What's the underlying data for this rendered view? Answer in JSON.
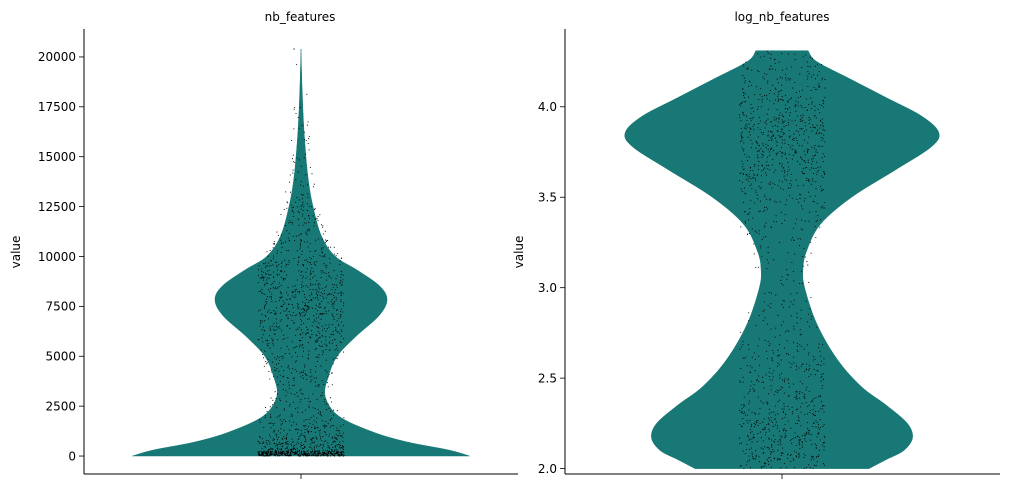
{
  "colors": {
    "violin": "#177876",
    "points": "#000000",
    "axis": "#000000",
    "background": "#ffffff"
  },
  "chart_data": [
    {
      "type": "violin",
      "title": "nb_features",
      "xlabel": "",
      "ylabel": "value",
      "ylim": [
        -900,
        21400
      ],
      "yticks": [
        0,
        2500,
        5000,
        7500,
        10000,
        12500,
        15000,
        17500,
        20000
      ],
      "ytick_labels": [
        "0",
        "2500",
        "5000",
        "7500",
        "10000",
        "12500",
        "15000",
        "17500",
        "20000"
      ],
      "violin_range": [
        0,
        20400
      ],
      "density": [
        [
          0,
          0.98
        ],
        [
          300,
          0.86
        ],
        [
          700,
          0.62
        ],
        [
          1200,
          0.42
        ],
        [
          2000,
          0.22
        ],
        [
          3000,
          0.14
        ],
        [
          4000,
          0.16
        ],
        [
          5000,
          0.21
        ],
        [
          6000,
          0.32
        ],
        [
          7000,
          0.45
        ],
        [
          7800,
          0.5
        ],
        [
          8500,
          0.46
        ],
        [
          9300,
          0.33
        ],
        [
          10000,
          0.2
        ],
        [
          11000,
          0.12
        ],
        [
          12500,
          0.07
        ],
        [
          14000,
          0.04
        ],
        [
          16000,
          0.02
        ],
        [
          18000,
          0.008
        ],
        [
          20400,
          0.0
        ]
      ],
      "points": {
        "count": 1400,
        "jitter_width": 0.31,
        "max": 20400
      }
    },
    {
      "type": "violin",
      "title": "log_nb_features",
      "xlabel": "",
      "ylabel": "value",
      "ylim": [
        1.97,
        4.43
      ],
      "yticks": [
        2.0,
        2.5,
        3.0,
        3.5,
        4.0
      ],
      "ytick_labels": [
        "2.0",
        "2.5",
        "3.0",
        "3.5",
        "4.0"
      ],
      "violin_range": [
        2.0,
        4.31
      ],
      "density": [
        [
          2.0,
          0.5
        ],
        [
          2.05,
          0.6
        ],
        [
          2.1,
          0.7
        ],
        [
          2.17,
          0.75
        ],
        [
          2.25,
          0.72
        ],
        [
          2.35,
          0.6
        ],
        [
          2.45,
          0.46
        ],
        [
          2.6,
          0.32
        ],
        [
          2.8,
          0.2
        ],
        [
          3.0,
          0.13
        ],
        [
          3.1,
          0.12
        ],
        [
          3.2,
          0.14
        ],
        [
          3.35,
          0.22
        ],
        [
          3.5,
          0.4
        ],
        [
          3.65,
          0.65
        ],
        [
          3.78,
          0.86
        ],
        [
          3.86,
          0.9
        ],
        [
          3.95,
          0.8
        ],
        [
          4.05,
          0.6
        ],
        [
          4.15,
          0.4
        ],
        [
          4.25,
          0.2
        ],
        [
          4.31,
          0.15
        ]
      ],
      "points": {
        "count": 1400,
        "jitter_width": 0.29,
        "max": 4.31
      }
    }
  ]
}
